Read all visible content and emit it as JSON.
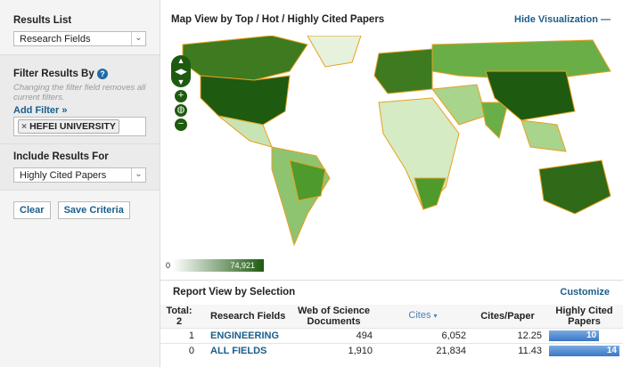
{
  "sidebar": {
    "results_list": {
      "label": "Results List",
      "value": "Research Fields"
    },
    "filter": {
      "label": "Filter Results By",
      "help": "?",
      "note": "Changing the filter field removes all current filters.",
      "add_filter": "Add Filter »",
      "chips": [
        {
          "remove": "×",
          "label": "HEFEI UNIVERSITY"
        }
      ]
    },
    "include": {
      "label": "Include Results For",
      "value": "Highly Cited Papers"
    },
    "clear": "Clear",
    "save": "Save Criteria"
  },
  "map": {
    "title": "Map View by Top / Hot / Highly Cited Papers",
    "hide": "Hide Visualization",
    "legend_min": "0",
    "legend_max": "74,921",
    "colors": {
      "ocean": "#ffffff",
      "land_low": "#e6f2dc",
      "land_high": "#1e5a10",
      "border": "#e8a020"
    }
  },
  "report": {
    "title": "Report View by Selection",
    "customize": "Customize",
    "columns": {
      "total": "Total:",
      "total_n": "2",
      "field": "Research Fields",
      "docs": "Web of Science Documents",
      "cites": "Cites",
      "cites_sort": "▾",
      "cpp": "Cites/Paper",
      "hcp": "Highly Cited Papers"
    },
    "rows": [
      {
        "n": "1",
        "field": "ENGINEERING",
        "docs": "494",
        "cites": "6,052",
        "cpp": "12.25",
        "hcp": "10"
      },
      {
        "n": "0",
        "field": "ALL FIELDS",
        "docs": "1,910",
        "cites": "21,834",
        "cpp": "11.43",
        "hcp": "14"
      }
    ]
  }
}
